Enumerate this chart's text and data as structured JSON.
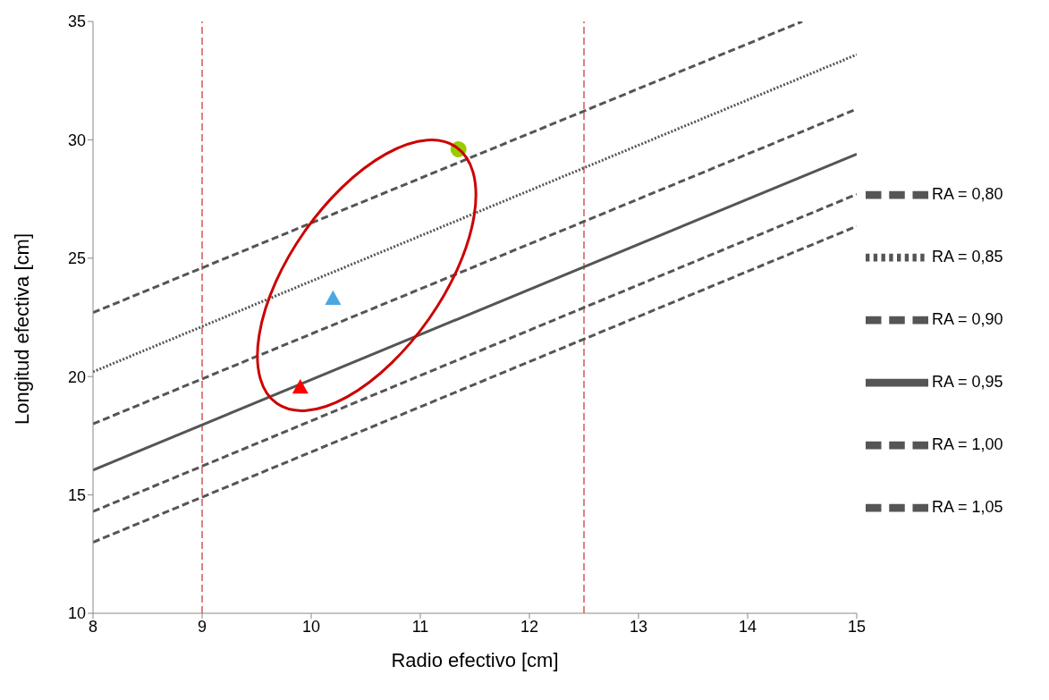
{
  "chart_data": {
    "type": "line",
    "xlabel": "Radio efectivo [cm]",
    "ylabel": "Longitud efectiva [cm]",
    "xlim": [
      8,
      15
    ],
    "ylim": [
      10,
      35
    ],
    "xticks": [
      8,
      9,
      10,
      11,
      12,
      13,
      14,
      15
    ],
    "yticks": [
      10,
      15,
      20,
      25,
      30,
      35
    ],
    "grid": false,
    "legend": "right",
    "marker": "none",
    "series": [
      {
        "type": "scatter",
        "marker": "triangle",
        "color": "#4aa8e0",
        "x": [
          10.2
        ],
        "values": [
          23.3
        ]
      },
      {
        "type": "scatter",
        "marker": "triangle",
        "color": "#ff0000",
        "x": [
          9.9
        ],
        "values": [
          19.55
        ]
      },
      {
        "type": "scatter",
        "marker": "circle",
        "color": "#99cc00",
        "x": [
          11.35
        ],
        "values": [
          29.6
        ]
      },
      {
        "name": "RA = 0,80",
        "color": "#555555",
        "line_style": "dashed",
        "x": [
          8,
          14.5
        ],
        "values": [
          22.7,
          35
        ]
      },
      {
        "name": "RA = 0,85",
        "color": "#555555",
        "line_style": "dotted",
        "x": [
          8,
          15
        ],
        "values": [
          20.2,
          33.6
        ]
      },
      {
        "name": "RA = 0,90",
        "color": "#555555",
        "line_style": "dashed",
        "x": [
          8,
          15
        ],
        "values": [
          18.0,
          31.3
        ]
      },
      {
        "name": "RA = 0,95",
        "color": "#555555",
        "line_style": "solid",
        "x": [
          8,
          15
        ],
        "values": [
          16.05,
          29.4
        ]
      },
      {
        "name": "RA = 1,00",
        "color": "#555555",
        "line_style": "dashed",
        "x": [
          8,
          15
        ],
        "values": [
          14.3,
          27.7
        ]
      },
      {
        "name": "RA = 1,05",
        "color": "#555555",
        "line_style": "dashed",
        "x": [
          8,
          15
        ],
        "values": [
          13.0,
          26.35
        ]
      }
    ],
    "ref_lines": [
      {
        "axis": "x",
        "value": 9,
        "color": "#c00000",
        "line_style": "dashed"
      },
      {
        "axis": "x",
        "value": 12.5,
        "color": "#c00000",
        "line_style": "dashed"
      }
    ]
  }
}
